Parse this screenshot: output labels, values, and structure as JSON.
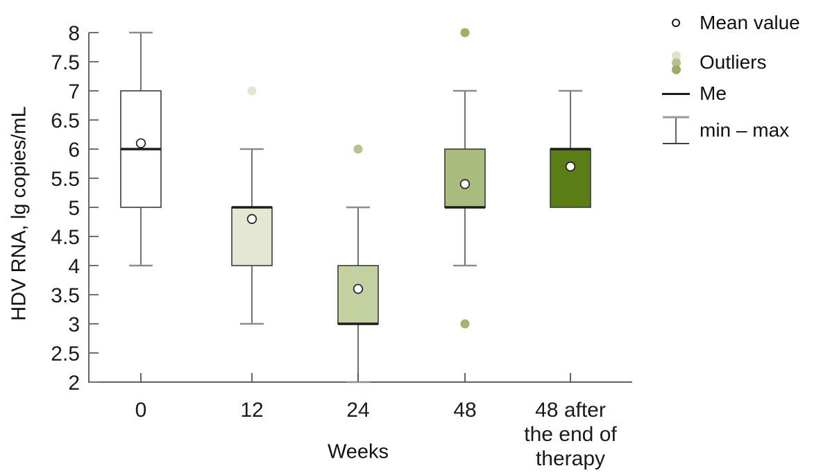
{
  "chart": {
    "title": "",
    "ylabel": "HDV RNA, lg copies/mL",
    "xlabel": "Weeks"
  },
  "legend": {
    "items": [
      {
        "label": "Mean value"
      },
      {
        "label": "Outliers"
      },
      {
        "label": "Me"
      },
      {
        "label": "min – max"
      }
    ],
    "outlier_dot_colors": [
      "#dfe3cc",
      "#b3c28d",
      "#9cad63"
    ]
  },
  "chart_data": {
    "type": "box",
    "title": "",
    "xlabel": "Weeks",
    "ylabel": "HDV RNA, lg copies/mL",
    "ylim": [
      2,
      8
    ],
    "ytick_step": 0.5,
    "grid": false,
    "legend_position": "top-right",
    "categories": [
      "0",
      "12",
      "24",
      "48",
      "48 after the end of therapy"
    ],
    "series": [
      {
        "category": "0",
        "label_lines": [
          "0"
        ],
        "fill": "#ffffff",
        "q1": 5,
        "q3": 7,
        "median": 6,
        "mean": 6.1,
        "min": 4,
        "max": 8,
        "outliers": []
      },
      {
        "category": "12",
        "label_lines": [
          "12"
        ],
        "fill": "#e4e7d2",
        "q1": 4,
        "q3": 5,
        "median": 5,
        "mean": 4.8,
        "min": 3,
        "max": 6,
        "outliers": [
          {
            "value": 7,
            "color": "#e3e6d1"
          }
        ]
      },
      {
        "category": "24",
        "label_lines": [
          "24"
        ],
        "fill": "#c3d0a0",
        "q1": 3,
        "q3": 4,
        "median": 3,
        "mean": 3.6,
        "min": 2,
        "max": 5,
        "outliers": [
          {
            "value": 6,
            "color": "#b5c38c"
          }
        ]
      },
      {
        "category": "48",
        "label_lines": [
          "48"
        ],
        "fill": "#a9bc7e",
        "q1": 5,
        "q3": 6,
        "median": 5,
        "mean": 5.4,
        "min": 4,
        "max": 7,
        "outliers": [
          {
            "value": 8,
            "color": "#9fb161"
          },
          {
            "value": 3,
            "color": "#a3b470"
          }
        ]
      },
      {
        "category": "48 after the end of therapy",
        "label_lines": [
          "48 after",
          "the end of",
          "therapy"
        ],
        "fill": "#5b7d16",
        "q1": 5,
        "q3": 6,
        "median": 6,
        "mean": 5.7,
        "min": null,
        "max": 7,
        "outliers": []
      }
    ]
  }
}
